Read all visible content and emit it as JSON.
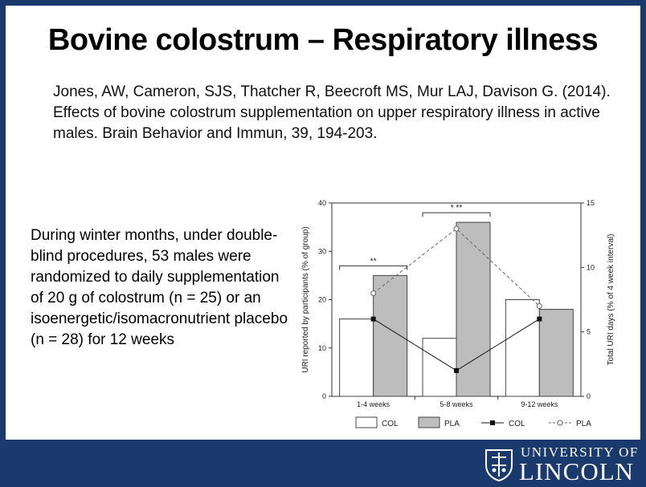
{
  "slide": {
    "title": "Bovine colostrum – Respiratory illness",
    "citation": "Jones, AW, Cameron, SJS, Thatcher R, Beecroft MS, Mur LAJ, Davison G. (2014). Effects of bovine colostrum supplementation on upper respiratory illness in active males. Brain Behavior and Immun, 39, 194-203.",
    "summary": "During winter months, under double-blind procedures, 53 males were randomized to daily supplementation of 20 g of colostrum (n = 25) or an isoenergetic/isomacronutrient placebo (n = 28) for 12 weeks"
  },
  "footer": {
    "university_top": "UNIVERSITY OF",
    "university_name": "LINCOLN",
    "background": "#1a3a6e"
  },
  "chart_data": {
    "type": "bar",
    "categories": [
      "1-4 weeks",
      "5-8 weeks",
      "9-12 weeks"
    ],
    "ylabel": "URI reported by participants (% of group)",
    "ylim": [
      0,
      40
    ],
    "yticks": [
      "0",
      "10",
      "20",
      "30",
      "40"
    ],
    "y2label": "Total URI days (% of 4 week interval)",
    "y2lim": [
      0,
      15
    ],
    "y2ticks": [
      "0",
      "5",
      "10",
      "15"
    ],
    "series": [
      {
        "name": "COL",
        "kind": "bar",
        "axis": "left",
        "values": [
          16,
          12,
          20
        ],
        "fill": "#ffffff"
      },
      {
        "name": "PLA",
        "kind": "bar",
        "axis": "left",
        "values": [
          25,
          36,
          18
        ],
        "fill": "#bdbdbd"
      },
      {
        "name": "COL",
        "kind": "line",
        "axis": "right",
        "values": [
          6,
          2,
          6
        ],
        "style": "solid",
        "marker": "filled-square"
      },
      {
        "name": "PLA",
        "kind": "line",
        "axis": "right",
        "values": [
          8,
          13,
          7
        ],
        "style": "dashed",
        "marker": "open-circle"
      }
    ],
    "annotations": [
      {
        "label": "**",
        "category_index": 0
      },
      {
        "label": "* **",
        "category_index": 1
      }
    ],
    "legend_position": "bottom",
    "grid": false
  }
}
